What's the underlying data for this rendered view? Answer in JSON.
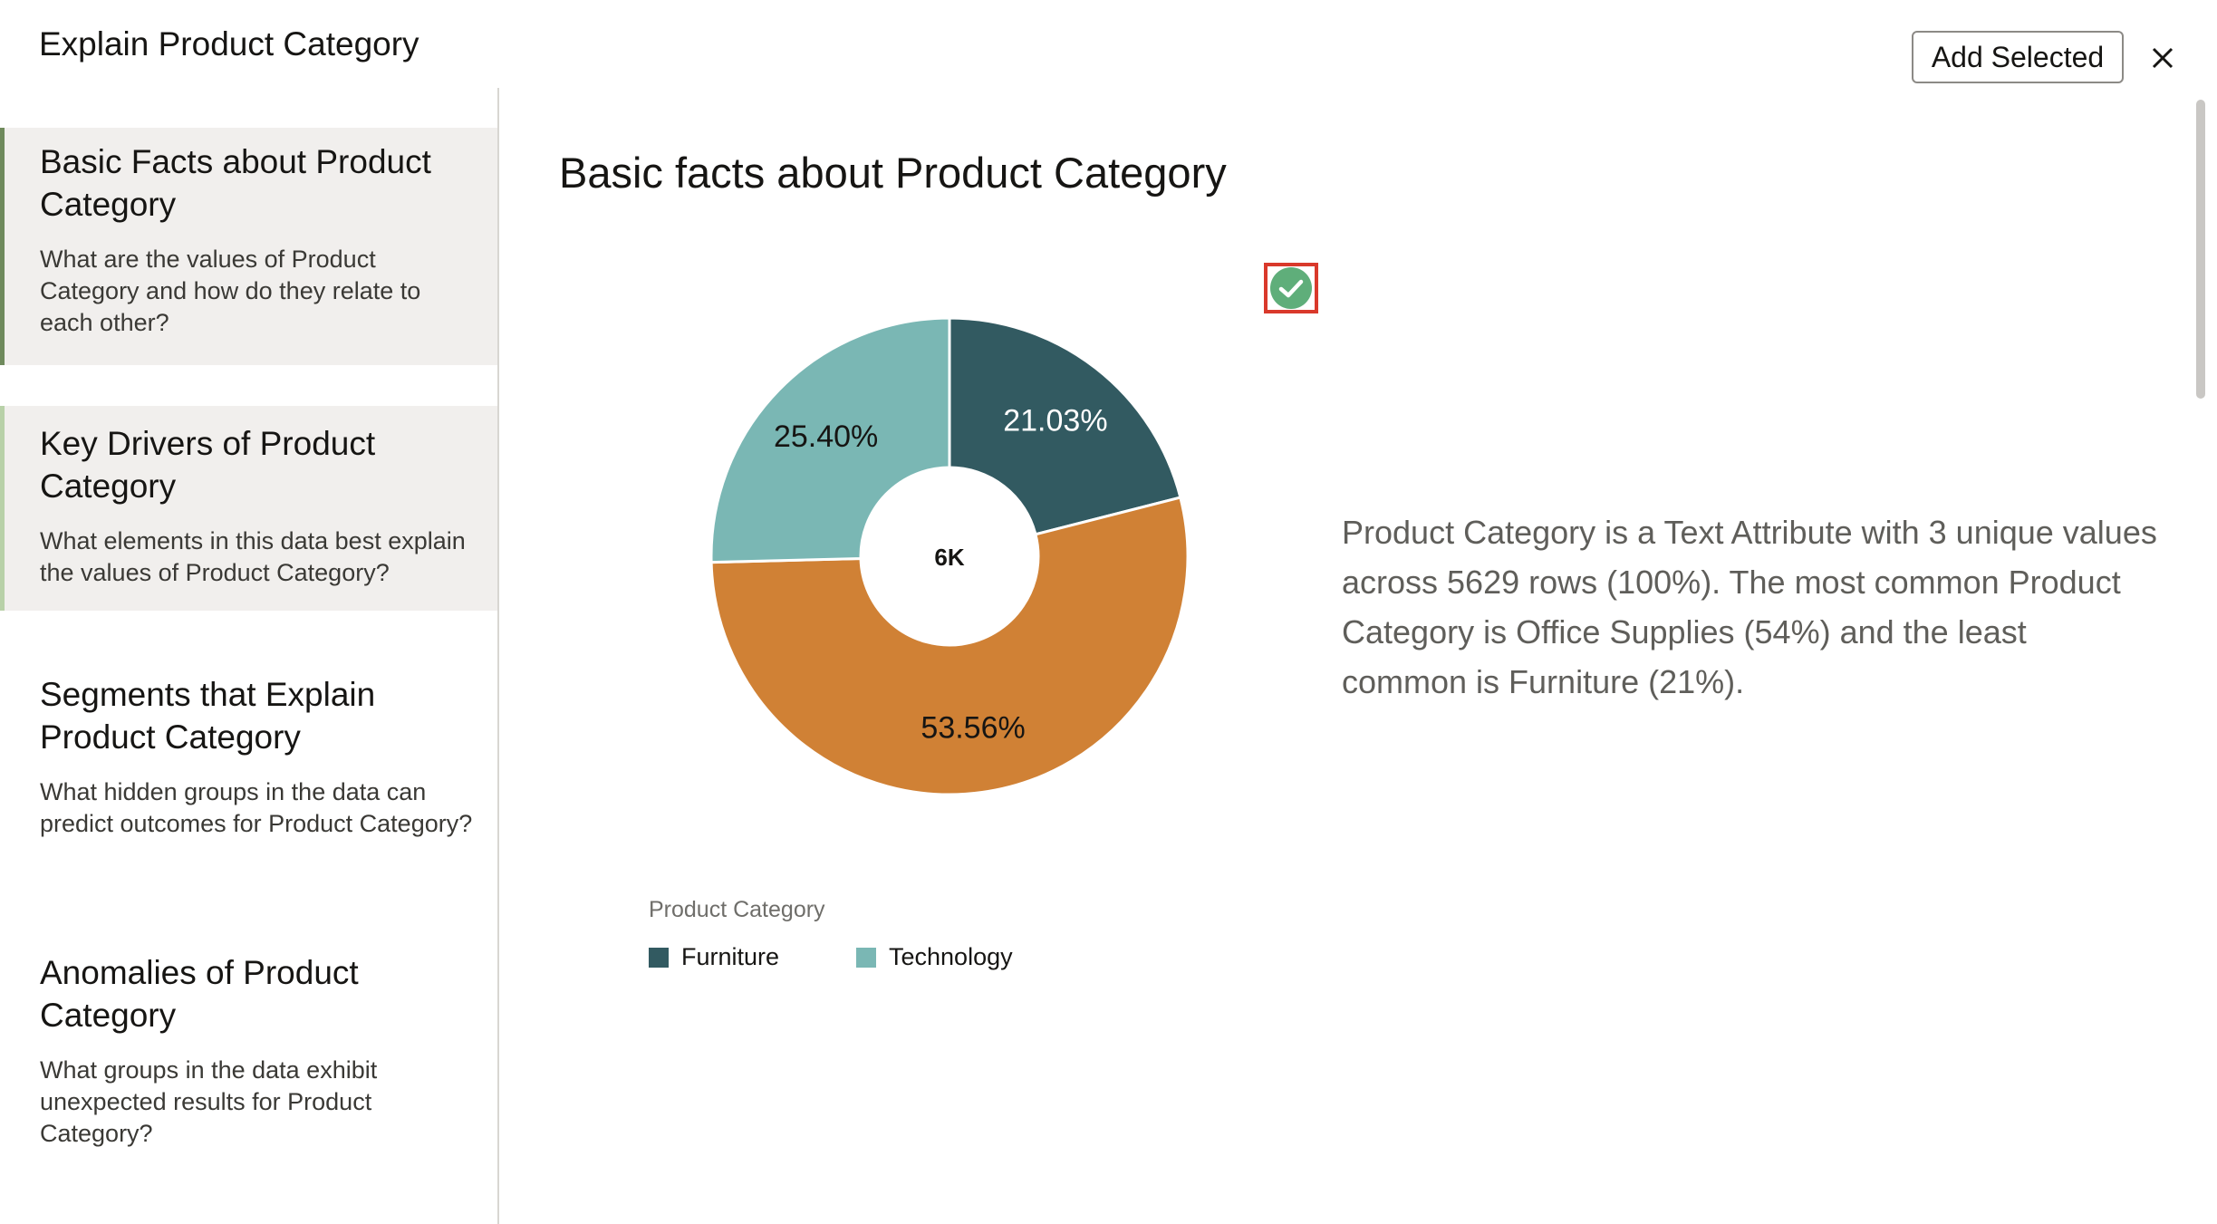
{
  "dialog": {
    "title": "Explain Product Category",
    "add_selected_label": "Add Selected"
  },
  "sidebar": {
    "items": [
      {
        "title": "Basic Facts about Product Category",
        "description": "What are the values of Product Category and how do they relate to each other?",
        "state": "selected"
      },
      {
        "title": "Key Drivers of Product Category",
        "description": "What elements in this data best explain the values of Product Category?",
        "state": "hover"
      },
      {
        "title": "Segments that Explain Product Category",
        "description": "What hidden groups in the data can predict outcomes for Product Category?",
        "state": "normal"
      },
      {
        "title": "Anomalies of Product Category",
        "description": "What groups in the data exhibit unexpected results for Product Category?",
        "state": "normal"
      }
    ]
  },
  "main": {
    "section_title": "Basic facts about Product Category",
    "description": "Product Category is a Text Attribute with 3 unique values across 5629 rows (100%). The most common Product Category is Office Supplies (54%) and the least common is Furniture (21%).",
    "selected": true
  },
  "chart_data": {
    "type": "pie",
    "donut": true,
    "center_label": "6K",
    "slices": [
      {
        "category": "Furniture",
        "value": 21.03,
        "label": "21.03%",
        "color": "#325a61"
      },
      {
        "category": "",
        "value": 53.56,
        "label": "53.56%",
        "color": "#d08135"
      },
      {
        "category": "Technology",
        "value": 25.4,
        "label": "25.40%",
        "color": "#7ab7b4"
      }
    ],
    "legend": {
      "title": "Product Category",
      "placement": "bottom-left",
      "entries": [
        {
          "name": "Furniture",
          "color": "#325a61"
        },
        {
          "name": "Technology",
          "color": "#7ab7b4"
        }
      ]
    }
  },
  "colors": {
    "accent_selected": "#6f8a5c",
    "accent_hover": "#b8d1a8",
    "check_green": "#5fae7a",
    "highlight_red": "#d9392b"
  },
  "icons": {
    "close": "close-icon",
    "check": "check-circle-icon"
  }
}
